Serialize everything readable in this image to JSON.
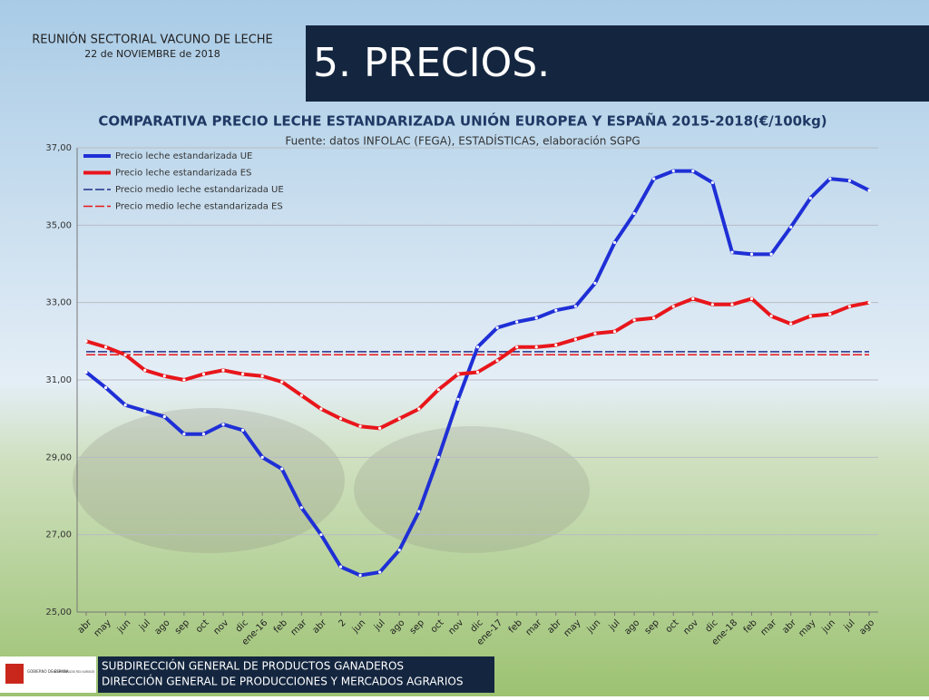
{
  "header": {
    "event": "REUNIÓN SECTORIAL VACUNO DE LECHE",
    "date": "22 de NOVIEMBRE de 2018",
    "section": "5. PRECIOS."
  },
  "footer": {
    "logo_left": "GOBIERNO DE ESPAÑA",
    "logo_right": "MINISTERIO DE AGRICULTURA, PESCA Y ALIMENTACIÓN",
    "line1": "SUBDIRECCIÓN GENERAL DE PRODUCTOS GANADEROS",
    "line2": "DIRECCIÓN GENERAL DE PRODUCCIONES Y MERCADOS AGRARIOS"
  },
  "chart_data": {
    "type": "line",
    "title": "COMPARATIVA PRECIO LECHE ESTANDARIZADA UNIÓN EUROPEA Y ESPAÑA 2015-2018(€/100kg)",
    "subtitle": "Fuente: datos INFOLAC (FEGA), ESTADÍSTICAS, elaboración SGPG",
    "categories": [
      "abr",
      "may",
      "jun",
      "jul",
      "ago",
      "sep",
      "oct",
      "nov",
      "dic",
      "ene-16",
      "feb",
      "mar",
      "abr",
      "2",
      "jun",
      "jul",
      "ago",
      "sep",
      "oct",
      "nov",
      "dic",
      "ene-17",
      "feb",
      "mar",
      "abr",
      "may",
      "jun",
      "jul",
      "ago",
      "sep",
      "oct",
      "nov",
      "dic",
      "ene-18",
      "feb",
      "mar",
      "abr",
      "may",
      "jun",
      "jul",
      "ago"
    ],
    "series": [
      {
        "name": "Precio leche estandarizada UE",
        "color": "#1f2fd6",
        "values": [
          31.2,
          30.8,
          30.35,
          30.2,
          30.05,
          29.6,
          29.6,
          29.85,
          29.7,
          29.0,
          28.7,
          27.7,
          27.0,
          26.17,
          25.95,
          26.03,
          26.6,
          27.6,
          29.0,
          30.5,
          31.85,
          32.35,
          32.5,
          32.6,
          32.8,
          32.9,
          33.5,
          34.55,
          35.3,
          36.2,
          36.4,
          36.4,
          36.1,
          34.3,
          34.25,
          34.25,
          34.95,
          35.7,
          36.2,
          36.15,
          35.9
        ]
      },
      {
        "name": "Precio leche estandarizada ES",
        "color": "#e8161b",
        "values": [
          32.0,
          31.85,
          31.65,
          31.25,
          31.1,
          31.0,
          31.15,
          31.25,
          31.15,
          31.1,
          30.95,
          30.6,
          30.25,
          30.0,
          29.8,
          29.75,
          30.0,
          30.25,
          30.75,
          31.15,
          31.2,
          31.5,
          31.85,
          31.85,
          31.9,
          32.05,
          32.2,
          32.25,
          32.55,
          32.6,
          32.9,
          33.1,
          32.95,
          32.95,
          33.1,
          32.65,
          32.45,
          32.65,
          32.7,
          32.9,
          33.0
        ]
      }
    ],
    "mean_lines": [
      {
        "name": "Precio medio leche estandarizada UE",
        "color": "#1f2f8a",
        "value": 31.73
      },
      {
        "name": "Precio medio leche estandarizada ES",
        "color": "#e8161b",
        "value": 31.65
      }
    ],
    "ylim": [
      25,
      37
    ],
    "yticks": [
      {
        "value": 25,
        "label": "25,00"
      },
      {
        "value": 27,
        "label": "27,00"
      },
      {
        "value": 29,
        "label": "29,00"
      },
      {
        "value": 31,
        "label": "31,00"
      },
      {
        "value": 33,
        "label": "33,00"
      },
      {
        "value": 35,
        "label": "35,00"
      },
      {
        "value": 37,
        "label": "37,00"
      }
    ],
    "grid": true,
    "legend": "top-left"
  }
}
